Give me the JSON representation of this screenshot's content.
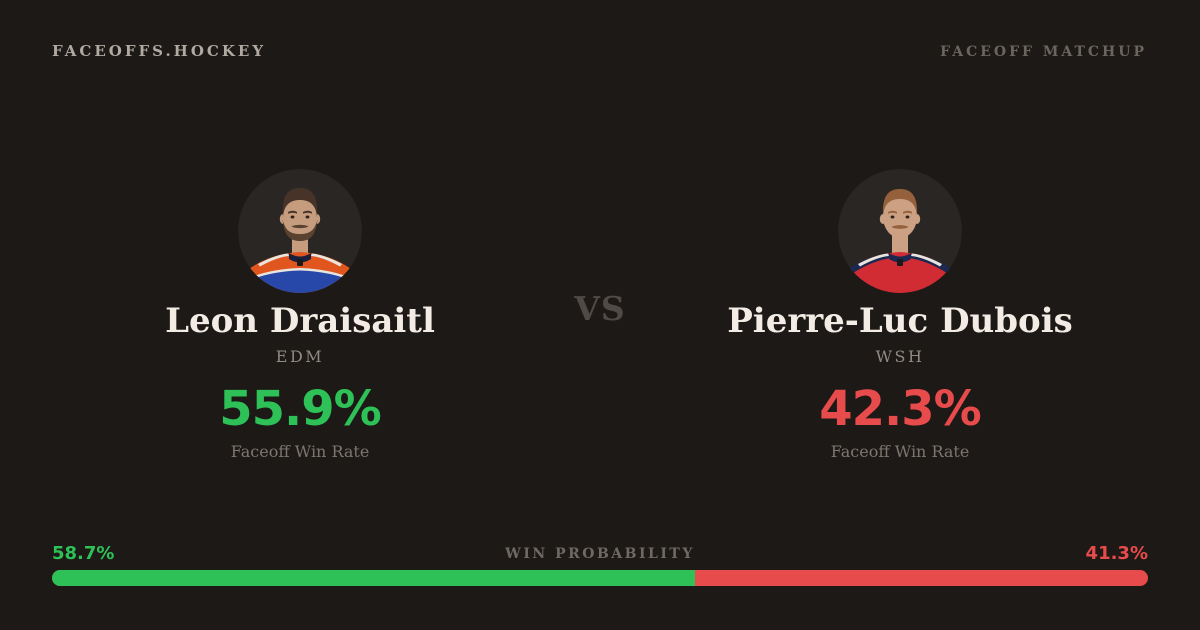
{
  "header": {
    "logo": "FACEOFFS.HOCKEY",
    "label": "FACEOFF MATCHUP"
  },
  "matchup": {
    "vs": "VS",
    "left": {
      "name": "Leon Draisaitl",
      "team": "EDM",
      "win_rate": "55.9%",
      "win_rate_label": "Faceoff Win Rate",
      "accent_color": "#2dc157",
      "avatar": {
        "circle_color": "#2a2623",
        "skin_color": "#c59c7e",
        "hair_color": "#473327",
        "beard_color": "#59422f",
        "jersey_color": "#e0561e",
        "jersey_lower_color": "#2748a8",
        "jersey_pipe_color": "#e9e5de",
        "collar_color": "#17203d"
      }
    },
    "right": {
      "name": "Pierre-Luc Dubois",
      "team": "WSH",
      "win_rate": "42.3%",
      "win_rate_label": "Faceoff Win Rate",
      "accent_color": "#e84b4b",
      "avatar": {
        "circle_color": "#2a2623",
        "skin_color": "#cba083",
        "hair_color": "#95613c",
        "beard_color": "#95613c",
        "jersey_color": "#d12b33",
        "jersey_lower_color": "#d12b33",
        "jersey_pipe_color": "#e9e5de",
        "collar_color": "#1b2850"
      }
    }
  },
  "win_probability": {
    "label": "WIN PROBABILITY",
    "left": {
      "value": "58.7%",
      "pct": 58.7,
      "color": "#2dc157"
    },
    "right": {
      "value": "41.3%",
      "pct": 41.3,
      "color": "#e84b4b"
    }
  }
}
